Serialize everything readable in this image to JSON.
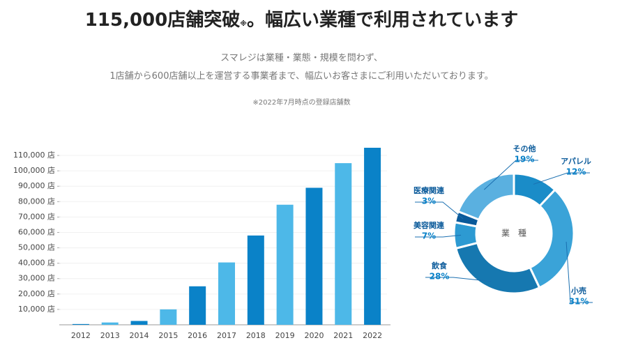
{
  "header": {
    "title_main": "115,000店舗突破",
    "title_note": "※",
    "title_rest": "。幅広い業種で利用されています",
    "subtitle_lines": [
      "スマレジは業種・業態・規模を問わず、",
      "1店舗から600店舗以上を運営する事業者まで、幅広いお客さまにご利用いただいております。"
    ],
    "note": "※2022年7月時点の登録店舗数"
  },
  "chart_data": [
    {
      "type": "bar",
      "categories": [
        "2012",
        "2013",
        "2014",
        "2015",
        "2016",
        "2017",
        "2018",
        "2019",
        "2020",
        "2021",
        "2022"
      ],
      "values": [
        500,
        1500,
        2500,
        10000,
        25000,
        40500,
        58000,
        78000,
        89000,
        105000,
        115000
      ],
      "colors": [
        "#0a82c8",
        "#4db8e8",
        "#0a82c8",
        "#4db8e8",
        "#0a82c8",
        "#4db8e8",
        "#0a82c8",
        "#4db8e8",
        "#0a82c8",
        "#4db8e8",
        "#0a82c8"
      ],
      "ylim": [
        0,
        115000
      ],
      "yticks": [
        {
          "value": 10000,
          "label": "10,000 店"
        },
        {
          "value": 20000,
          "label": "20,000 店"
        },
        {
          "value": 30000,
          "label": "30,000 店"
        },
        {
          "value": 40000,
          "label": "40,000 店"
        },
        {
          "value": 50000,
          "label": "50,000 店"
        },
        {
          "value": 60000,
          "label": "60,000 店"
        },
        {
          "value": 70000,
          "label": "70,000 店"
        },
        {
          "value": 80000,
          "label": "80,000 店"
        },
        {
          "value": 90000,
          "label": "90,000 店"
        },
        {
          "value": 100000,
          "label": "100,000 店"
        },
        {
          "value": 110000,
          "label": "110,000 店"
        }
      ],
      "grid": true
    },
    {
      "type": "donut",
      "center_label": "業　種",
      "categories": [
        "アパレル",
        "小売",
        "飲食",
        "美容関連",
        "医療関連",
        "その他"
      ],
      "values": [
        12,
        31,
        28,
        7,
        3,
        19
      ],
      "value_labels": [
        "12%",
        "31%",
        "28%",
        "7%",
        "3%",
        "19%"
      ],
      "colors": [
        "#1a8cc8",
        "#3aa3d8",
        "#1678b0",
        "#2d9ad2",
        "#0a5a9a",
        "#5ab0e0"
      ]
    }
  ]
}
